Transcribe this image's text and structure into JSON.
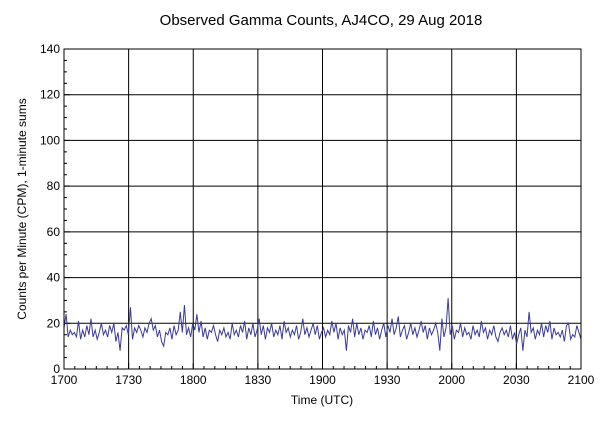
{
  "chart_data": {
    "type": "line",
    "title": "Observed Gamma Counts, AJ4CO, 29 Aug 2018",
    "xlabel": "Time (UTC)",
    "ylabel": "Counts per Minute (CPM), 1-minute sums",
    "x_ticks": [
      "1700",
      "1730",
      "1800",
      "1830",
      "1900",
      "1930",
      "2000",
      "2030",
      "2100"
    ],
    "y_ticks": [
      0,
      20,
      40,
      60,
      80,
      100,
      120,
      140
    ],
    "ylim": [
      0,
      140
    ],
    "xlim_minutes": [
      0,
      240
    ],
    "grid": true,
    "line_color": "#3a3a9a",
    "series": [
      {
        "values": [
          18,
          24,
          14,
          17,
          15,
          16,
          14,
          21,
          13,
          17,
          14,
          19,
          15,
          22,
          14,
          17,
          13,
          16,
          20,
          15,
          17,
          14,
          19,
          16,
          20,
          12,
          16,
          8,
          18,
          17,
          19,
          15,
          27,
          13,
          18,
          16,
          19,
          17,
          14,
          18,
          16,
          20,
          22,
          17,
          19,
          14,
          17,
          12,
          10,
          16,
          15,
          18,
          13,
          19,
          15,
          17,
          25,
          16,
          28,
          15,
          18,
          14,
          20,
          17,
          24,
          16,
          21,
          14,
          18,
          13,
          17,
          16,
          19,
          15,
          12,
          17,
          15,
          18,
          14,
          16,
          13,
          20,
          15,
          17,
          14,
          19,
          16,
          21,
          13,
          18,
          15,
          20,
          14,
          17,
          22,
          15,
          19,
          13,
          18,
          16,
          20,
          14,
          17,
          15,
          19,
          13,
          21,
          16,
          18,
          14,
          17,
          15,
          19,
          13,
          16,
          22,
          15,
          18,
          14,
          17,
          20,
          15,
          19,
          13,
          16,
          18,
          14,
          17,
          15,
          21,
          16,
          20,
          13,
          18,
          15,
          17,
          8,
          19,
          16,
          22,
          14,
          20,
          15,
          18,
          13,
          17,
          16,
          19,
          14,
          21,
          15,
          18,
          13,
          17,
          20,
          14,
          19,
          16,
          22,
          15,
          18,
          23,
          14,
          17,
          19,
          13,
          16,
          20,
          15,
          18,
          14,
          17,
          21,
          16,
          19,
          13,
          18,
          15,
          17,
          20,
          16,
          8,
          22,
          14,
          18,
          31,
          15,
          19,
          13,
          17,
          16,
          20,
          14,
          18,
          15,
          16,
          13,
          19,
          15,
          17,
          14,
          21,
          16,
          18,
          13,
          17,
          15,
          19,
          14,
          12,
          16,
          18,
          15,
          17,
          14,
          19,
          13,
          16,
          11,
          15,
          18,
          8,
          17,
          14,
          25,
          16,
          18,
          13,
          17,
          15,
          20,
          14,
          19,
          16,
          21,
          13,
          18,
          15,
          16,
          14,
          17,
          12,
          19,
          20,
          13,
          15,
          14,
          19,
          16,
          13
        ]
      }
    ]
  }
}
